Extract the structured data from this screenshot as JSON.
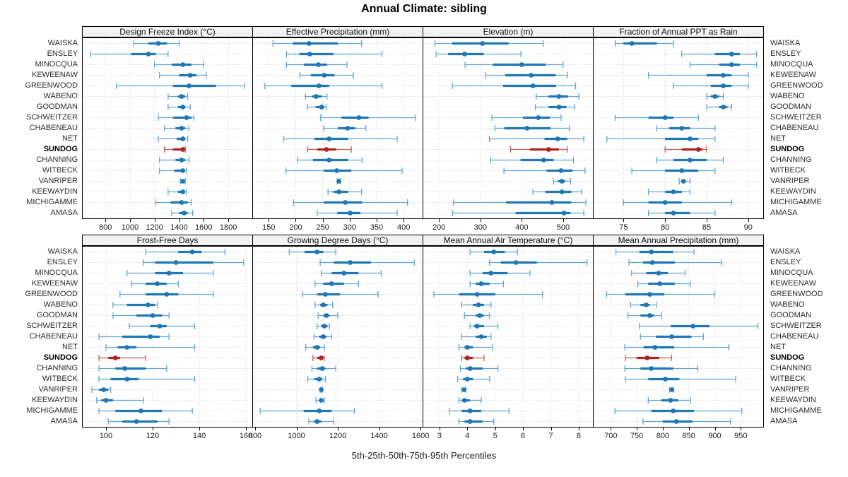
{
  "title": "Annual Climate: sibling",
  "caption": "5th-25th-50th-75th-95th Percentiles",
  "colors": {
    "blue": "#1f77b4",
    "blue_light": "#62a3d0",
    "red": "#b22222",
    "red_light": "#c65a50",
    "grid": "#d9d9d9",
    "strip_bg": "#f2f2f2",
    "border": "#000000",
    "text": "#2b2b2b"
  },
  "chart_data": {
    "type": "dotplot-percentile-ranges",
    "percentiles": [
      5,
      25,
      50,
      75,
      95
    ],
    "legend_note": "each row shows 5th-25th-50th-75th-95th percentile whisker/box/median-dot",
    "stations": [
      "WAISKA",
      "ENSLEY",
      "MINOCQUA",
      "KEWEENAW",
      "GREENWOOD",
      "WABENO",
      "GOODMAN",
      "SCHWEITZER",
      "CHABENEAU",
      "NET",
      "SUNDOG",
      "CHANNING",
      "WITBECK",
      "VANRIPER",
      "KEEWAYDIN",
      "MICHIGAMME",
      "AMASA"
    ],
    "highlight_station": "SUNDOG",
    "panels": [
      {
        "title": "Design Freeze Index (°C)",
        "row": 0,
        "col": 0,
        "ticks": [
          800,
          1000,
          1200,
          1400,
          1600,
          1800
        ],
        "xlim": [
          615,
          1995
        ],
        "values": [
          [
            1030,
            1150,
            1230,
            1300,
            1400
          ],
          [
            680,
            1010,
            1150,
            1210,
            1310
          ],
          [
            1200,
            1340,
            1430,
            1500,
            1600
          ],
          [
            1240,
            1400,
            1490,
            1540,
            1620
          ],
          [
            890,
            1350,
            1480,
            1700,
            1930
          ],
          [
            1310,
            1390,
            1420,
            1450,
            1470
          ],
          [
            1310,
            1390,
            1430,
            1450,
            1490
          ],
          [
            1230,
            1350,
            1460,
            1500,
            1520
          ],
          [
            1280,
            1370,
            1420,
            1450,
            1480
          ],
          [
            1230,
            1380,
            1430,
            1450,
            1470
          ],
          [
            1280,
            1350,
            1430,
            1440,
            1450
          ],
          [
            1240,
            1370,
            1420,
            1450,
            1480
          ],
          [
            1240,
            1360,
            1430,
            1440,
            1460
          ],
          [
            1410,
            1420,
            1430,
            1440,
            1450
          ],
          [
            1310,
            1390,
            1430,
            1440,
            1460
          ],
          [
            1210,
            1330,
            1420,
            1470,
            1500
          ],
          [
            1340,
            1400,
            1440,
            1470,
            1510
          ]
        ]
      },
      {
        "title": "Effective Precipitation (mm)",
        "row": 0,
        "col": 1,
        "ticks": [
          150,
          200,
          250,
          300,
          350,
          400
        ],
        "xlim": [
          121,
          435
        ],
        "values": [
          [
            158,
            195,
            225,
            278,
            322
          ],
          [
            183,
            207,
            226,
            270,
            360
          ],
          [
            183,
            215,
            242,
            258,
            295
          ],
          [
            208,
            228,
            253,
            272,
            307
          ],
          [
            143,
            192,
            243,
            262,
            360
          ],
          [
            218,
            230,
            238,
            248,
            258
          ],
          [
            222,
            237,
            248,
            253,
            257
          ],
          [
            246,
            285,
            317,
            335,
            422
          ],
          [
            252,
            278,
            296,
            310,
            330
          ],
          [
            178,
            235,
            262,
            297,
            388
          ],
          [
            222,
            240,
            257,
            275,
            303
          ],
          [
            203,
            232,
            262,
            297,
            323
          ],
          [
            182,
            252,
            276,
            303,
            397
          ],
          [
            277,
            279,
            280,
            281,
            283
          ],
          [
            260,
            270,
            280,
            297,
            322
          ],
          [
            196,
            252,
            292,
            323,
            407
          ],
          [
            240,
            277,
            301,
            320,
            388
          ]
        ]
      },
      {
        "title": "Elevation (m)",
        "row": 0,
        "col": 2,
        "ticks": [
          200,
          300,
          400,
          500
        ],
        "xlim": [
          162,
          572
        ],
        "values": [
          [
            190,
            232,
            305,
            368,
            452
          ],
          [
            193,
            222,
            262,
            308,
            398
          ],
          [
            263,
            330,
            400,
            458,
            500
          ],
          [
            312,
            360,
            423,
            482,
            510
          ],
          [
            232,
            355,
            427,
            483,
            530
          ],
          [
            435,
            465,
            490,
            512,
            538
          ],
          [
            433,
            465,
            490,
            508,
            528
          ],
          [
            328,
            403,
            440,
            468,
            495
          ],
          [
            335,
            358,
            413,
            470,
            515
          ],
          [
            322,
            455,
            487,
            510,
            550
          ],
          [
            373,
            420,
            465,
            490,
            510
          ],
          [
            325,
            397,
            453,
            477,
            525
          ],
          [
            357,
            460,
            495,
            523,
            553
          ],
          [
            477,
            488,
            497,
            505,
            518
          ],
          [
            427,
            457,
            497,
            520,
            545
          ],
          [
            235,
            362,
            473,
            520,
            555
          ],
          [
            233,
            385,
            502,
            518,
            550
          ]
        ]
      },
      {
        "title": "Fraction of Annual PPT as Rain",
        "row": 0,
        "col": 3,
        "ticks": [
          75,
          80,
          85,
          90
        ],
        "xlim": [
          71.4,
          91.8
        ],
        "values": [
          [
            74,
            75,
            76,
            79,
            81
          ],
          [
            82,
            86,
            88,
            89,
            91
          ],
          [
            83,
            86.5,
            88,
            89,
            91
          ],
          [
            78,
            85,
            87,
            88,
            90
          ],
          [
            81,
            85.5,
            87,
            88,
            90
          ],
          [
            85,
            85.5,
            86,
            86.5,
            87
          ],
          [
            85,
            86.5,
            87,
            87.5,
            88
          ],
          [
            74,
            78,
            80,
            81,
            84
          ],
          [
            79,
            80.5,
            82,
            83,
            86
          ],
          [
            73,
            80,
            83,
            84,
            86
          ],
          [
            80,
            82,
            84,
            84.5,
            85
          ],
          [
            79,
            81,
            83,
            85,
            87
          ],
          [
            76,
            80,
            82,
            84,
            86
          ],
          [
            81.7,
            82,
            82.2,
            82.5,
            83
          ],
          [
            78,
            80,
            81,
            82,
            83
          ],
          [
            75,
            78,
            80,
            82,
            88
          ],
          [
            78,
            80,
            81,
            83,
            86
          ]
        ]
      },
      {
        "title": "Frost-Free Days",
        "row": 1,
        "col": 0,
        "ticks": [
          100,
          120,
          140,
          160
        ],
        "xlim": [
          90,
          162.7
        ],
        "values": [
          [
            117,
            131,
            137,
            141,
            151
          ],
          [
            116,
            121,
            130,
            146,
            159
          ],
          [
            109,
            121,
            127,
            133,
            146
          ],
          [
            111,
            117,
            122,
            126,
            131
          ],
          [
            106,
            117,
            126,
            131,
            146
          ],
          [
            103,
            109,
            118,
            121,
            122
          ],
          [
            103,
            113,
            120,
            124,
            127
          ],
          [
            110,
            119,
            123,
            126,
            138
          ],
          [
            97,
            107,
            119,
            123,
            127
          ],
          [
            100,
            105,
            109,
            113,
            138
          ],
          [
            97,
            101,
            104,
            106,
            117
          ],
          [
            97,
            104,
            108,
            117,
            126
          ],
          [
            97,
            102,
            109,
            114,
            138
          ],
          [
            94,
            97,
            99,
            101,
            102
          ],
          [
            96,
            98,
            100,
            103,
            116
          ],
          [
            97,
            104,
            115,
            124,
            137
          ],
          [
            101,
            107,
            113,
            122,
            127
          ]
        ]
      },
      {
        "title": "Growing Degree Days (°C)",
        "row": 1,
        "col": 1,
        "ticks": [
          800,
          1000,
          1200,
          1400,
          1600
        ],
        "xlim": [
          790,
          1610
        ],
        "values": [
          [
            965,
            1040,
            1100,
            1130,
            1190
          ],
          [
            1115,
            1180,
            1260,
            1360,
            1570
          ],
          [
            1120,
            1170,
            1230,
            1300,
            1410
          ],
          [
            1090,
            1130,
            1170,
            1230,
            1300
          ],
          [
            1030,
            1100,
            1140,
            1210,
            1395
          ],
          [
            1090,
            1115,
            1130,
            1150,
            1175
          ],
          [
            1105,
            1130,
            1145,
            1160,
            1200
          ],
          [
            1100,
            1120,
            1135,
            1150,
            1160
          ],
          [
            1085,
            1110,
            1130,
            1145,
            1170
          ],
          [
            1045,
            1080,
            1100,
            1115,
            1135
          ],
          [
            1080,
            1100,
            1120,
            1130,
            1135
          ],
          [
            1075,
            1100,
            1125,
            1140,
            1190
          ],
          [
            1055,
            1085,
            1110,
            1125,
            1140
          ],
          [
            1115,
            1118,
            1120,
            1123,
            1126
          ],
          [
            1095,
            1110,
            1120,
            1130,
            1135
          ],
          [
            825,
            1035,
            1110,
            1170,
            1280
          ],
          [
            1060,
            1085,
            1100,
            1120,
            1180
          ]
        ]
      },
      {
        "title": "Mean Annual Air Temperature (°C)",
        "row": 1,
        "col": 2,
        "ticks": [
          3,
          4,
          5,
          6,
          7,
          8
        ],
        "xlim": [
          2.42,
          8.51
        ],
        "values": [
          [
            4.1,
            4.6,
            4.95,
            5.35,
            5.8
          ],
          [
            4.8,
            5.2,
            5.75,
            6.5,
            8.3
          ],
          [
            4.1,
            4.55,
            4.85,
            5.45,
            6.25
          ],
          [
            4.1,
            4.3,
            4.5,
            4.8,
            5.3
          ],
          [
            2.8,
            3.7,
            4.35,
            5.0,
            6.7
          ],
          [
            3.8,
            4.2,
            4.4,
            4.6,
            4.85
          ],
          [
            3.9,
            4.3,
            4.45,
            4.6,
            4.8
          ],
          [
            4.1,
            4.25,
            4.35,
            4.6,
            5.1
          ],
          [
            3.8,
            4.3,
            4.5,
            4.7,
            4.85
          ],
          [
            3.7,
            3.9,
            4.0,
            4.2,
            4.9
          ],
          [
            3.8,
            3.9,
            4.0,
            4.2,
            4.6
          ],
          [
            3.75,
            3.95,
            4.1,
            4.55,
            5.1
          ],
          [
            3.65,
            3.85,
            4.0,
            4.2,
            4.8
          ],
          [
            3.8,
            3.85,
            3.88,
            3.92,
            3.95
          ],
          [
            3.7,
            3.8,
            3.9,
            4.1,
            4.5
          ],
          [
            3.35,
            3.8,
            4.1,
            4.5,
            5.5
          ],
          [
            3.7,
            3.9,
            4.1,
            4.55,
            4.95
          ]
        ]
      },
      {
        "title": "Mean Annual Precipitation (mm)",
        "row": 1,
        "col": 3,
        "ticks": [
          700,
          750,
          800,
          850,
          900,
          950
        ],
        "xlim": [
          667,
          993
        ],
        "values": [
          [
            710,
            755,
            778,
            820,
            860
          ],
          [
            735,
            762,
            780,
            823,
            913
          ],
          [
            740,
            768,
            792,
            810,
            843
          ],
          [
            752,
            772,
            794,
            823,
            853
          ],
          [
            692,
            728,
            775,
            803,
            900
          ],
          [
            738,
            757,
            768,
            775,
            788
          ],
          [
            733,
            757,
            775,
            783,
            797
          ],
          [
            755,
            815,
            858,
            890,
            983
          ],
          [
            757,
            787,
            817,
            855,
            878
          ],
          [
            727,
            763,
            785,
            822,
            927
          ],
          [
            728,
            750,
            770,
            793,
            817
          ],
          [
            727,
            757,
            778,
            820,
            867
          ],
          [
            728,
            772,
            805,
            832,
            940
          ],
          [
            813,
            815,
            817,
            819,
            821
          ],
          [
            772,
            797,
            815,
            830,
            853
          ],
          [
            708,
            778,
            820,
            860,
            952
          ],
          [
            762,
            800,
            826,
            857,
            930
          ]
        ]
      }
    ]
  }
}
